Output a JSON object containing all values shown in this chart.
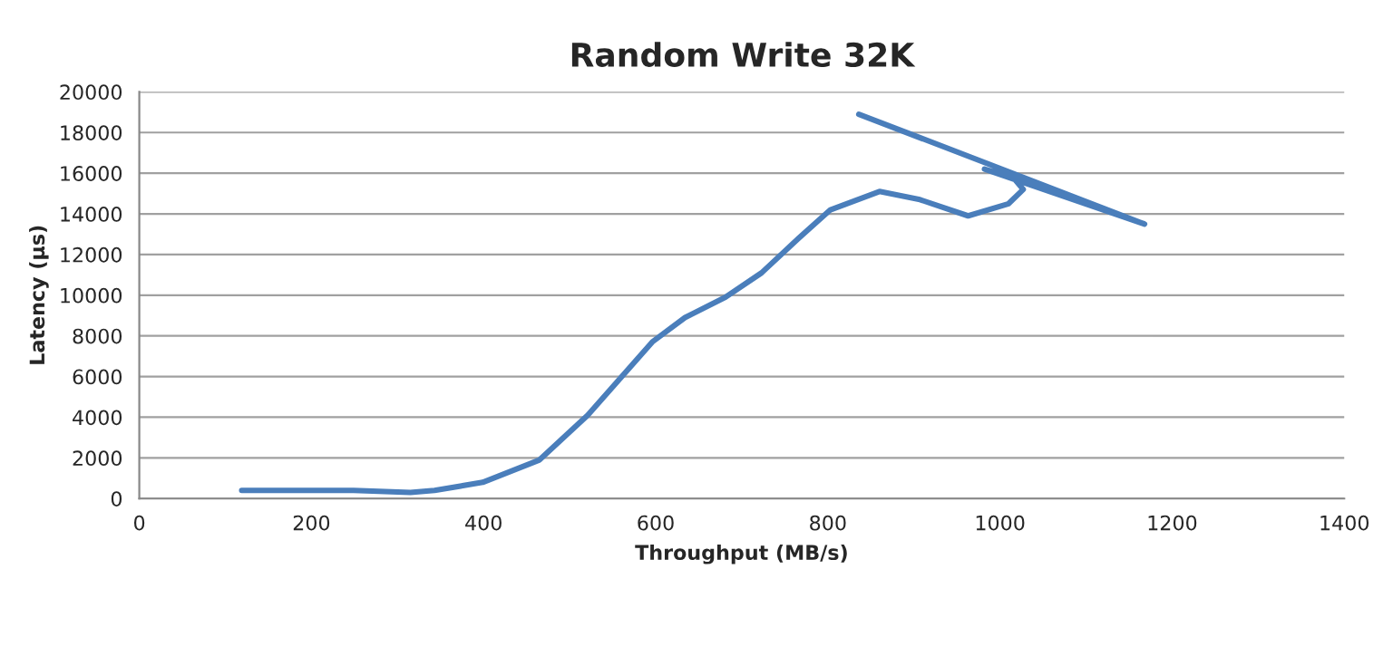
{
  "chart_data": {
    "type": "line",
    "title": "Random Write 32K",
    "xlabel": "Throughput (MB/s)",
    "ylabel": "Latency (µs)",
    "xlim": [
      0,
      1400
    ],
    "xticks": [
      0,
      200,
      400,
      600,
      800,
      1000,
      1200,
      1400
    ],
    "ylim": [
      0,
      20000
    ],
    "yticks": [
      0,
      2000,
      4000,
      6000,
      8000,
      10000,
      12000,
      14000,
      16000,
      18000,
      20000
    ],
    "grid": "y",
    "marker": "none",
    "line_style": "solid",
    "series": [
      {
        "color": "#4a7ebb",
        "x": [
          119,
          249,
          315,
          343,
          399,
          465,
          521,
          596,
          634,
          681,
          723,
          766,
          803,
          860,
          907,
          963,
          1010,
          1027,
          1015,
          982,
          1168,
          836
        ],
        "values": [
          400,
          400,
          300,
          400,
          800,
          1900,
          4100,
          7700,
          8900,
          9900,
          11100,
          12800,
          14200,
          15100,
          14700,
          13900,
          14500,
          15200,
          15800,
          16200,
          13500,
          18900
        ]
      }
    ]
  }
}
